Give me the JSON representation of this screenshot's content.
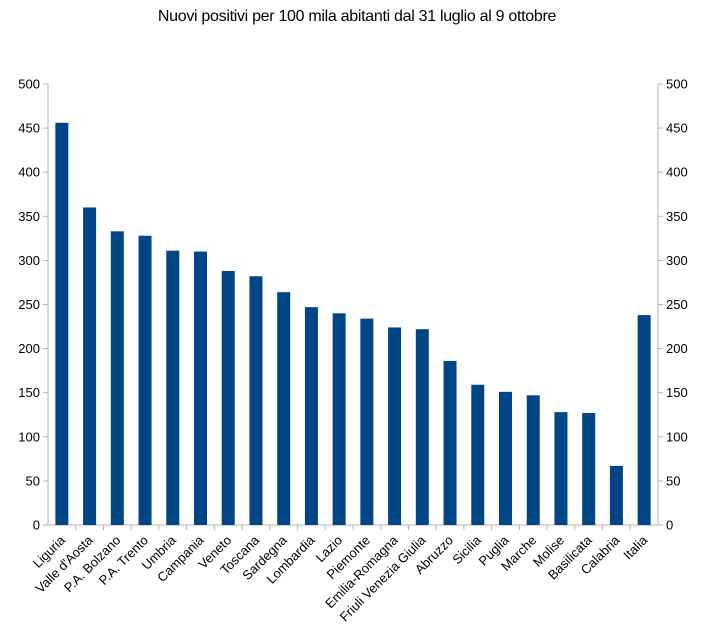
{
  "chart_data": {
    "type": "bar",
    "title": "Nuovi positivi per 100 mila abitanti dal 31 luglio al 9 ottobre",
    "xlabel": "",
    "ylabel": "",
    "ylim": [
      0,
      500
    ],
    "yticks": [
      0,
      50,
      100,
      150,
      200,
      250,
      300,
      350,
      400,
      450,
      500
    ],
    "grid": false,
    "legend": "none",
    "secondary_y_axis": true,
    "categories": [
      "Liguria",
      "Valle d'Aosta",
      "P.A. Bolzano",
      "P.A. Trento",
      "Umbria",
      "Campania",
      "Veneto",
      "Toscana",
      "Sardegna",
      "Lombardia",
      "Lazio",
      "Piemonte",
      "Emilia-Romagna",
      "Friuli Venezia Giulia",
      "Abruzzo",
      "Sicilia",
      "Puglia",
      "Marche",
      "Molise",
      "Basilicata",
      "Calabria",
      "Italia"
    ],
    "values": [
      456,
      360,
      333,
      328,
      311,
      310,
      288,
      282,
      264,
      247,
      240,
      234,
      224,
      222,
      186,
      159,
      151,
      147,
      128,
      127,
      67,
      238
    ],
    "bar_color": "#004586"
  }
}
